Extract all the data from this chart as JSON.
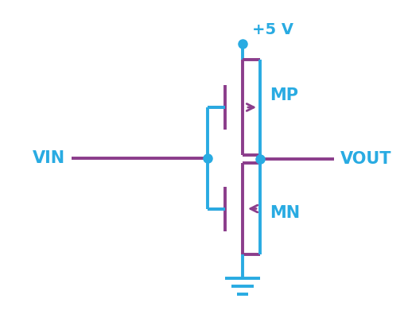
{
  "blue": "#29ABE2",
  "purple": "#8B3D8B",
  "bg": "#FFFFFF",
  "vdd_label": "+5 V",
  "vin_label": "VIN",
  "vout_label": "VOUT",
  "mp_label": "MP",
  "mn_label": "MN",
  "figsize": [
    5.13,
    4.0
  ],
  "dpi": 100
}
